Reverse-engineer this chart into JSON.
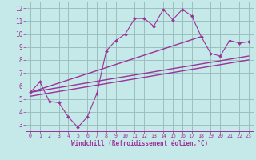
{
  "xlabel": "Windchill (Refroidissement éolien,°C)",
  "bg_color": "#c5e8e8",
  "line_color": "#993399",
  "grid_color": "#9bbfbf",
  "x_data": [
    0,
    1,
    2,
    3,
    4,
    5,
    6,
    7,
    8,
    9,
    10,
    11,
    12,
    13,
    14,
    15,
    16,
    17,
    18,
    19,
    20,
    21,
    22,
    23
  ],
  "y_data": [
    5.5,
    6.3,
    4.8,
    4.7,
    3.6,
    2.8,
    3.6,
    5.4,
    8.7,
    9.5,
    10.0,
    11.2,
    11.2,
    10.6,
    11.9,
    11.1,
    11.9,
    11.4,
    9.8,
    8.5,
    8.3,
    9.5,
    9.3,
    9.4
  ],
  "trend1_x": [
    0,
    18
  ],
  "trend1_y": [
    5.5,
    9.8
  ],
  "trend2_x": [
    0,
    23
  ],
  "trend2_y": [
    5.5,
    8.3
  ],
  "trend3_x": [
    0,
    23
  ],
  "trend3_y": [
    5.2,
    8.0
  ],
  "xlim": [
    -0.5,
    23.5
  ],
  "ylim": [
    2.5,
    12.5
  ],
  "yticks": [
    3,
    4,
    5,
    6,
    7,
    8,
    9,
    10,
    11,
    12
  ],
  "xticks": [
    0,
    1,
    2,
    3,
    4,
    5,
    6,
    7,
    8,
    9,
    10,
    11,
    12,
    13,
    14,
    15,
    16,
    17,
    18,
    19,
    20,
    21,
    22,
    23
  ]
}
